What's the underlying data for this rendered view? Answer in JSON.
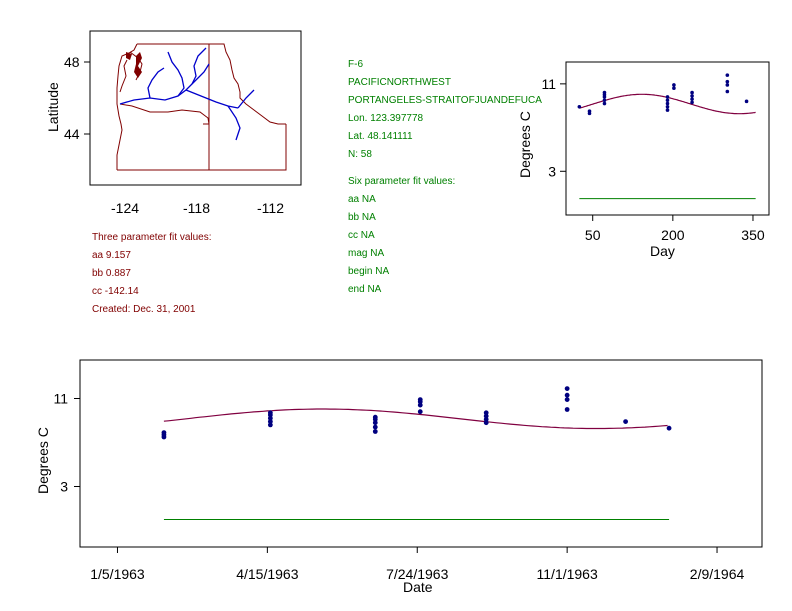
{
  "map": {
    "ylabel": "Latitude",
    "yticks": [
      "48",
      "44"
    ],
    "xticks": [
      "-124",
      "-118",
      "-112"
    ],
    "colors": {
      "border": "#800000",
      "rivers": "#0000cc"
    }
  },
  "station": {
    "lines": [
      "F-6",
      "PACIFICNORTHWEST",
      "PORTANGELES-STRAITOFJUANDEFUCA",
      "Lon. 123.397778",
      "Lat. 48.141111",
      "N: 58"
    ],
    "six_header": "Six parameter fit values:",
    "six_values": [
      "aa NA",
      "bb NA",
      "cc NA",
      "mag NA",
      "begin NA",
      "end NA"
    ],
    "color": "#008000"
  },
  "three": {
    "header": "Three parameter fit values:",
    "values": [
      "aa 9.157",
      "bb 0.887",
      "cc -142.14"
    ],
    "created": "Created:   Dec. 31, 2001",
    "color": "#800000"
  },
  "chart_data": [
    {
      "type": "scatter",
      "title": "",
      "xlabel": "Day",
      "ylabel": "Degrees C",
      "xlim": [
        0,
        380
      ],
      "ylim": [
        -1,
        13
      ],
      "xticks": [
        50,
        200,
        350
      ],
      "yticks": [
        3,
        11
      ],
      "points_color": "#000080",
      "fit_color": "#800040",
      "baseline_color": "#008000",
      "points": [
        [
          25,
          8.9
        ],
        [
          44,
          8.3
        ],
        [
          44,
          8.5
        ],
        [
          72,
          9.2
        ],
        [
          72,
          9.5
        ],
        [
          72,
          9.8
        ],
        [
          72,
          10.0
        ],
        [
          72,
          10.2
        ],
        [
          190,
          8.6
        ],
        [
          190,
          8.9
        ],
        [
          190,
          9.2
        ],
        [
          190,
          9.5
        ],
        [
          190,
          9.8
        ],
        [
          202,
          10.6
        ],
        [
          202,
          10.9
        ],
        [
          236,
          9.3
        ],
        [
          236,
          9.6
        ],
        [
          236,
          9.9
        ],
        [
          236,
          10.2
        ],
        [
          302,
          10.3
        ],
        [
          302,
          10.9
        ],
        [
          302,
          11.2
        ],
        [
          302,
          11.8
        ],
        [
          338,
          9.4
        ]
      ],
      "fit": {
        "aa": 9.157,
        "bb": 0.887,
        "cc": -142.14,
        "x_range": [
          25,
          355
        ]
      },
      "baseline": {
        "y": 0.5,
        "x_range": [
          25,
          355
        ]
      }
    },
    {
      "type": "scatter",
      "title": "",
      "xlabel": "Date",
      "ylabel": "Degrees C",
      "xlim_days": [
        -25,
        430
      ],
      "ylim": [
        -2.5,
        14.5
      ],
      "epoch": "1/5/1963",
      "xtick_days": [
        0,
        100,
        200,
        300,
        400
      ],
      "xtick_labels": [
        "1/5/1963",
        "4/15/1963",
        "7/24/1963",
        "11/1/1963",
        "2/9/1964"
      ],
      "yticks": [
        3,
        11
      ],
      "points_color": "#000080",
      "fit_color": "#800040",
      "baseline_color": "#008000",
      "points": [
        [
          31,
          7.5
        ],
        [
          31,
          7.7
        ],
        [
          31,
          7.9
        ],
        [
          102,
          8.6
        ],
        [
          102,
          8.9
        ],
        [
          102,
          9.2
        ],
        [
          102,
          9.5
        ],
        [
          102,
          9.7
        ],
        [
          172,
          8.0
        ],
        [
          172,
          8.4
        ],
        [
          172,
          8.8
        ],
        [
          172,
          9.1
        ],
        [
          172,
          9.3
        ],
        [
          202,
          9.8
        ],
        [
          202,
          10.4
        ],
        [
          202,
          10.7
        ],
        [
          202,
          10.9
        ],
        [
          246,
          8.8
        ],
        [
          246,
          9.1
        ],
        [
          246,
          9.4
        ],
        [
          246,
          9.7
        ],
        [
          300,
          10.0
        ],
        [
          300,
          10.9
        ],
        [
          300,
          11.3
        ],
        [
          300,
          11.9
        ],
        [
          339,
          8.9
        ],
        [
          368,
          8.3
        ]
      ],
      "fit": {
        "aa": 9.157,
        "bb": 0.887,
        "cc": -142.14,
        "x_range_days": [
          31,
          368
        ]
      },
      "baseline": {
        "y": 0.0,
        "x_range_days": [
          31,
          368
        ]
      }
    }
  ]
}
